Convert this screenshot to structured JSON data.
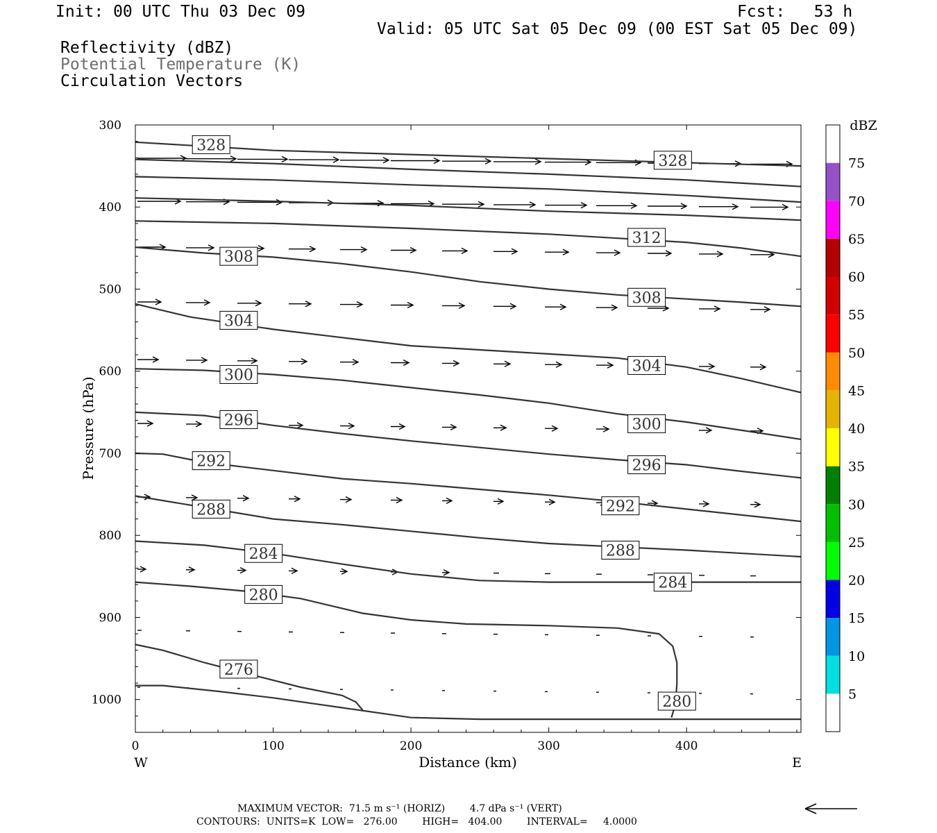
{
  "header": {
    "init": "Init: 00 UTC Thu 03 Dec 09",
    "fcst": "Fcst:   53 h",
    "valid": "Valid: 05 UTC Sat 05 Dec 09 (00 EST Sat 05 Dec 09)"
  },
  "legend": {
    "line1": "Reflectivity (dBZ)",
    "line2": "Potential Temperature (K)",
    "line3": "Circulation Vectors"
  },
  "footer": {
    "max_vector": "MAXIMUM VECTOR:  71.5 m s⁻¹ (HORIZ)        4.7 dPa s⁻¹ (VERT)",
    "contours": "CONTOURS:  UNITS=K  LOW=   276.00        HIGH=   404.00        INTERVAL=     4.0000"
  },
  "chart_data": {
    "type": "line",
    "xlabel": "Distance (km)",
    "ylabel": "Pressure (hPa)",
    "xlim": [
      0,
      483
    ],
    "ylim": [
      1040,
      300
    ],
    "y_scale": "linear",
    "x_ticks": [
      0,
      100,
      200,
      300,
      400
    ],
    "y_ticks": [
      300,
      400,
      500,
      600,
      700,
      800,
      900,
      1000
    ],
    "x_end_labels": {
      "left": "W",
      "right": "E"
    },
    "colorbar": {
      "units": "dBZ",
      "levels": [
        5,
        10,
        15,
        20,
        25,
        30,
        35,
        40,
        45,
        50,
        55,
        60,
        65,
        70,
        75
      ],
      "colors": [
        "#00e0e0",
        "#0096e6",
        "#0000e6",
        "#00ff00",
        "#00c000",
        "#008000",
        "#ffff00",
        "#e6b400",
        "#ff8c00",
        "#ff0000",
        "#d20000",
        "#b40000",
        "#ff00ff",
        "#9650c8",
        "#ffffff"
      ]
    },
    "theta_contours": [
      {
        "label": "276",
        "points": [
          [
            0,
            933
          ],
          [
            20,
            940
          ],
          [
            50,
            955
          ],
          [
            80,
            968
          ],
          [
            120,
            985
          ],
          [
            150,
            995
          ],
          [
            160,
            1003
          ],
          [
            165,
            1013
          ]
        ]
      },
      {
        "label": "",
        "points": [
          [
            0,
            983
          ],
          [
            20,
            983
          ],
          [
            60,
            990
          ],
          [
            100,
            998
          ],
          [
            150,
            1010
          ],
          [
            200,
            1022
          ],
          [
            250,
            1024
          ],
          [
            300,
            1024
          ],
          [
            400,
            1024
          ],
          [
            483,
            1024
          ]
        ]
      },
      {
        "label": "280",
        "points": [
          [
            0,
            857
          ],
          [
            40,
            862
          ],
          [
            80,
            868
          ],
          [
            120,
            877
          ],
          [
            165,
            895
          ],
          [
            200,
            903
          ],
          [
            240,
            908
          ],
          [
            300,
            910
          ],
          [
            350,
            913
          ],
          [
            380,
            920
          ],
          [
            390,
            935
          ],
          [
            393,
            955
          ],
          [
            393,
            980
          ],
          [
            392,
            1005
          ],
          [
            389,
            1022
          ]
        ]
      },
      {
        "label": "284",
        "points": [
          [
            0,
            807
          ],
          [
            50,
            812
          ],
          [
            100,
            822
          ],
          [
            150,
            835
          ],
          [
            200,
            847
          ],
          [
            250,
            855
          ],
          [
            300,
            857
          ],
          [
            350,
            857
          ],
          [
            400,
            857
          ],
          [
            483,
            857
          ]
        ]
      },
      {
        "label": "288",
        "points": [
          [
            0,
            752
          ],
          [
            50,
            766
          ],
          [
            100,
            780
          ],
          [
            150,
            787
          ],
          [
            200,
            795
          ],
          [
            250,
            803
          ],
          [
            300,
            810
          ],
          [
            350,
            814
          ],
          [
            400,
            818
          ],
          [
            483,
            826
          ]
        ]
      },
      {
        "label": "292",
        "points": [
          [
            0,
            700
          ],
          [
            20,
            701
          ],
          [
            50,
            711
          ],
          [
            100,
            721
          ],
          [
            150,
            731
          ],
          [
            200,
            737
          ],
          [
            250,
            744
          ],
          [
            300,
            751
          ],
          [
            350,
            759
          ],
          [
            400,
            768
          ],
          [
            483,
            783
          ]
        ]
      },
      {
        "label": "296",
        "points": [
          [
            0,
            650
          ],
          [
            50,
            654
          ],
          [
            100,
            666
          ],
          [
            150,
            676
          ],
          [
            200,
            685
          ],
          [
            250,
            693
          ],
          [
            300,
            701
          ],
          [
            350,
            708
          ],
          [
            400,
            714
          ],
          [
            440,
            722
          ],
          [
            483,
            730
          ]
        ]
      },
      {
        "label": "300",
        "points": [
          [
            0,
            597
          ],
          [
            50,
            599
          ],
          [
            100,
            604
          ],
          [
            150,
            611
          ],
          [
            200,
            620
          ],
          [
            250,
            629
          ],
          [
            300,
            639
          ],
          [
            350,
            652
          ],
          [
            400,
            662
          ],
          [
            440,
            672
          ],
          [
            483,
            683
          ]
        ]
      },
      {
        "label": "304",
        "points": [
          [
            0,
            518
          ],
          [
            40,
            534
          ],
          [
            100,
            549
          ],
          [
            150,
            559
          ],
          [
            200,
            569
          ],
          [
            250,
            574
          ],
          [
            300,
            579
          ],
          [
            350,
            584
          ],
          [
            400,
            595
          ],
          [
            440,
            609
          ],
          [
            483,
            626
          ]
        ]
      },
      {
        "label": "308",
        "points": [
          [
            0,
            449
          ],
          [
            50,
            456
          ],
          [
            100,
            461
          ],
          [
            150,
            469
          ],
          [
            200,
            479
          ],
          [
            250,
            491
          ],
          [
            300,
            500
          ],
          [
            350,
            507
          ],
          [
            400,
            512
          ],
          [
            440,
            516
          ],
          [
            483,
            521
          ]
        ]
      },
      {
        "label": "312",
        "points": [
          [
            0,
            417
          ],
          [
            100,
            420
          ],
          [
            200,
            426
          ],
          [
            300,
            433
          ],
          [
            350,
            438
          ],
          [
            400,
            443
          ],
          [
            440,
            450
          ],
          [
            483,
            460
          ]
        ]
      },
      {
        "label": "",
        "points": [
          [
            0,
            389
          ],
          [
            100,
            393
          ],
          [
            200,
            398
          ],
          [
            300,
            405
          ],
          [
            400,
            410
          ],
          [
            483,
            416
          ]
        ]
      },
      {
        "label": "",
        "points": [
          [
            0,
            363
          ],
          [
            100,
            367
          ],
          [
            200,
            373
          ],
          [
            300,
            378
          ],
          [
            400,
            386
          ],
          [
            483,
            394
          ]
        ]
      },
      {
        "label": "",
        "points": [
          [
            0,
            342
          ],
          [
            100,
            347
          ],
          [
            200,
            354
          ],
          [
            300,
            360
          ],
          [
            400,
            367
          ],
          [
            483,
            375
          ]
        ]
      },
      {
        "label": "328",
        "points": [
          [
            0,
            321
          ],
          [
            50,
            326
          ],
          [
            100,
            331
          ],
          [
            200,
            336
          ],
          [
            300,
            341
          ],
          [
            400,
            346
          ],
          [
            483,
            350
          ]
        ]
      }
    ],
    "contour_labels": [
      {
        "text": "328",
        "x": 55,
        "p": 324
      },
      {
        "text": "328",
        "x": 390,
        "p": 343
      },
      {
        "text": "312",
        "x": 371,
        "p": 437
      },
      {
        "text": "308",
        "x": 75,
        "p": 460
      },
      {
        "text": "308",
        "x": 371,
        "p": 510
      },
      {
        "text": "304",
        "x": 75,
        "p": 538
      },
      {
        "text": "304",
        "x": 371,
        "p": 593
      },
      {
        "text": "300",
        "x": 75,
        "p": 604
      },
      {
        "text": "300",
        "x": 371,
        "p": 664
      },
      {
        "text": "296",
        "x": 75,
        "p": 659
      },
      {
        "text": "296",
        "x": 371,
        "p": 714
      },
      {
        "text": "292",
        "x": 55,
        "p": 709
      },
      {
        "text": "292",
        "x": 352,
        "p": 764
      },
      {
        "text": "288",
        "x": 55,
        "p": 768
      },
      {
        "text": "288",
        "x": 352,
        "p": 818
      },
      {
        "text": "284",
        "x": 93,
        "p": 822
      },
      {
        "text": "284",
        "x": 390,
        "p": 857
      },
      {
        "text": "280",
        "x": 93,
        "p": 872
      },
      {
        "text": "276",
        "x": 75,
        "p": 963
      },
      {
        "text": "280",
        "x": 393,
        "p": 1002
      }
    ]
  }
}
